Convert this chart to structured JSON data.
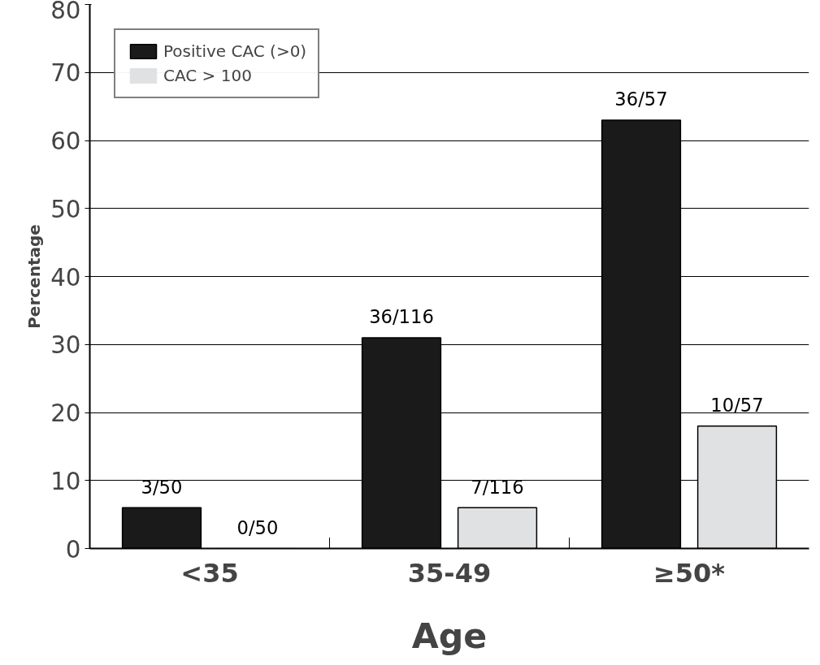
{
  "chart_data": {
    "type": "bar",
    "xlabel": "Age",
    "ylabel": "Percentage",
    "categories": [
      "<35",
      "35-49",
      "≥50*"
    ],
    "series": [
      {
        "name": "Positive CAC (>0)",
        "color": "#1a1a1a",
        "values": [
          6,
          31,
          63
        ],
        "value_labels": [
          "3/50",
          "36/116",
          "36/57"
        ]
      },
      {
        "name": "CAC > 100",
        "color": "#e0e1e3",
        "values": [
          0,
          6,
          18
        ],
        "value_labels": [
          "0/50",
          "7/116",
          "10/57"
        ]
      }
    ],
    "ylim": [
      0,
      80
    ],
    "yticks": [
      0,
      10,
      20,
      30,
      40,
      50,
      60,
      70,
      80
    ],
    "grid": "y",
    "legend": "top left"
  }
}
